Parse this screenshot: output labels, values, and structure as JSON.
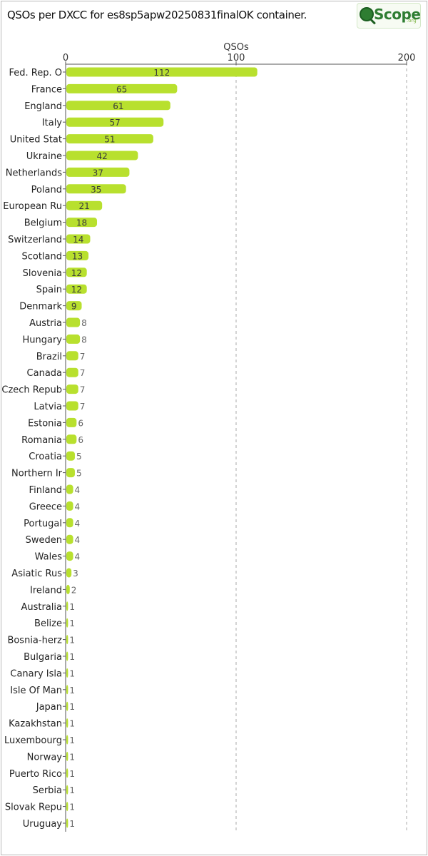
{
  "title": "QSOs per DXCC for es8sp5apw20250831finalOK container.",
  "logo": {
    "text": "Scope",
    "sub": ".org"
  },
  "colors": {
    "bar": "#b8e02e",
    "grid": "#aaaaaa",
    "axis": "#555555"
  },
  "chart_data": {
    "type": "bar",
    "orientation": "horizontal",
    "xlabel": "QSOs",
    "xlim": [
      0,
      200
    ],
    "xticks": [
      0,
      100,
      200
    ],
    "grid": true,
    "categories": [
      "Fed. Rep. O",
      "France",
      "England",
      "Italy",
      "United Stat",
      "Ukraine",
      "Netherlands",
      "Poland",
      "European Ru",
      "Belgium",
      "Switzerland",
      "Scotland",
      "Slovenia",
      "Spain",
      "Denmark",
      "Austria",
      "Hungary",
      "Brazil",
      "Canada",
      "Czech Repub",
      "Latvia",
      "Estonia",
      "Romania",
      "Croatia",
      "Northern Ir",
      "Finland",
      "Greece",
      "Portugal",
      "Sweden",
      "Wales",
      "Asiatic Rus",
      "Ireland",
      "Australia",
      "Belize",
      "Bosnia-herz",
      "Bulgaria",
      "Canary Isla",
      "Isle Of Man",
      "Japan",
      "Kazakhstan",
      "Luxembourg",
      "Norway",
      "Puerto Rico",
      "Serbia",
      "Slovak Repu",
      "Uruguay"
    ],
    "values": [
      112,
      65,
      61,
      57,
      51,
      42,
      37,
      35,
      21,
      18,
      14,
      13,
      12,
      12,
      9,
      8,
      8,
      7,
      7,
      7,
      7,
      6,
      6,
      5,
      5,
      4,
      4,
      4,
      4,
      4,
      3,
      2,
      1,
      1,
      1,
      1,
      1,
      1,
      1,
      1,
      1,
      1,
      1,
      1,
      1,
      1
    ]
  }
}
